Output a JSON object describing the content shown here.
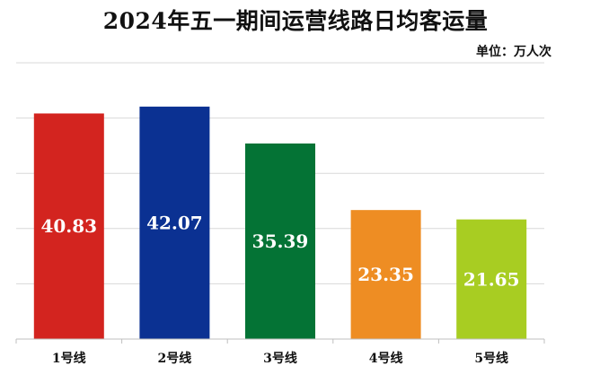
{
  "chart_data": {
    "type": "bar",
    "title": "2024年五一期间运营线路日均客运量",
    "unit": "单位：万人次",
    "categories": [
      "1号线",
      "2号线",
      "3号线",
      "4号线",
      "5号线"
    ],
    "values": [
      40.83,
      42.07,
      35.39,
      23.35,
      21.65
    ],
    "value_labels": [
      "40.83",
      "42.07",
      "35.39",
      "23.35",
      "21.65"
    ],
    "colors": [
      "#d3241f",
      "#0b3192",
      "#047335",
      "#ee8d23",
      "#a8cd22"
    ],
    "ylim": [
      0,
      50
    ],
    "grid": true,
    "legend": "none"
  }
}
